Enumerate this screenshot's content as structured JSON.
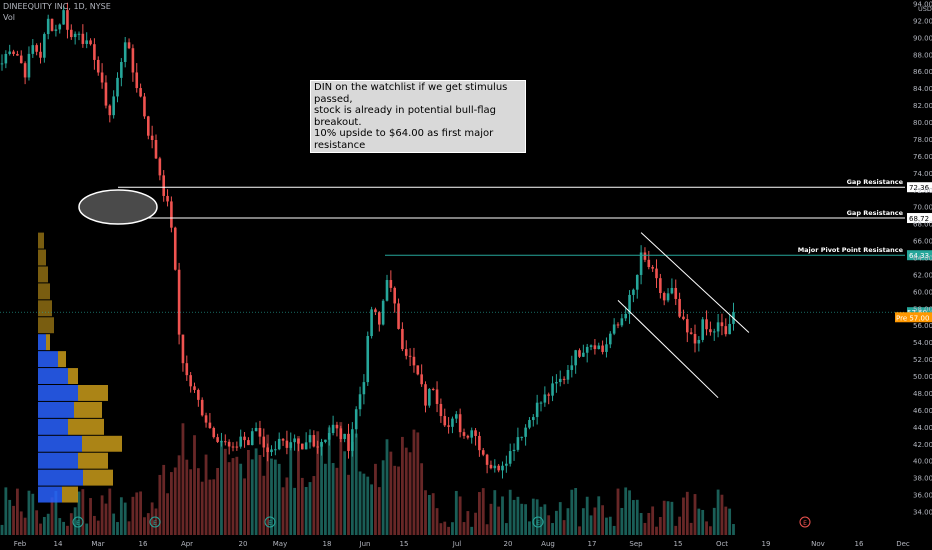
{
  "header": {
    "symbol": "DINEEQUITY INC, 1D, NYSE",
    "volume_label": "Vol"
  },
  "annotation": {
    "lines": [
      "DIN on the watchlist if we get stimulus passed,",
      "stock is already in potential bull-flag breakout.",
      "10% upside to $64.00 as first major resistance"
    ]
  },
  "chart_data": {
    "type": "candlestick",
    "currency": "USD",
    "y_axis": {
      "ylim": [
        34.0,
        94.0
      ],
      "ticks": [
        "94.00",
        "92.00",
        "90.00",
        "88.00",
        "86.00",
        "84.00",
        "82.00",
        "80.00",
        "78.00",
        "76.00",
        "74.00",
        "72.00",
        "70.00",
        "68.00",
        "66.00",
        "64.00",
        "62.00",
        "60.00",
        "58.00",
        "56.00",
        "54.00",
        "52.00",
        "50.00",
        "48.00",
        "46.00",
        "44.00",
        "42.00",
        "40.00",
        "38.00",
        "36.00",
        "34.00"
      ]
    },
    "x_axis": {
      "ticks": [
        "Feb",
        "14",
        "Mar",
        "16",
        "Apr",
        "20",
        "May",
        "18",
        "Jun",
        "15",
        "Jul",
        "20",
        "Aug",
        "17",
        "Sep",
        "15",
        "Oct",
        "19",
        "Nov",
        "16",
        "Dec"
      ]
    },
    "levels": [
      {
        "label": "Gap Resistance",
        "value": 72.36,
        "tag": "72.36"
      },
      {
        "label": "Gap Resistance",
        "value": 68.72,
        "tag": "68.72"
      },
      {
        "label": "Major Pivot Point Resistance",
        "value": 64.33,
        "tag": "64.33"
      }
    ],
    "price_tags": [
      {
        "prefix": "",
        "value": 57.6,
        "tag": "57.60",
        "color": "#26a69a"
      },
      {
        "prefix": "Pre",
        "value": 57.0,
        "tag": "57.00",
        "color": "#ff9800"
      }
    ],
    "colors": {
      "up": "#26a69a",
      "down": "#ef5350",
      "level": "#ffffff",
      "pivot": "#26a69a",
      "channel": "#ffffff",
      "vp_buy": "#2962ff",
      "vp_sell": "#c99b1a"
    },
    "series": [
      {
        "name": "price",
        "close_path": [
          [
            0,
            87
          ],
          [
            2,
            89
          ],
          [
            4,
            88
          ],
          [
            6,
            86
          ],
          [
            8,
            89
          ],
          [
            10,
            88
          ],
          [
            12,
            92
          ],
          [
            14,
            91
          ],
          [
            16,
            93
          ],
          [
            18,
            90
          ],
          [
            20,
            91
          ],
          [
            22,
            89
          ],
          [
            24,
            88
          ],
          [
            26,
            84
          ],
          [
            28,
            81
          ],
          [
            30,
            85
          ],
          [
            32,
            90
          ],
          [
            34,
            86
          ],
          [
            36,
            83
          ],
          [
            38,
            79
          ],
          [
            40,
            76
          ],
          [
            42,
            72
          ],
          [
            44,
            68
          ],
          [
            45,
            62
          ],
          [
            46,
            55
          ],
          [
            47,
            52
          ],
          [
            48,
            50
          ],
          [
            50,
            48
          ],
          [
            52,
            46
          ],
          [
            54,
            44
          ],
          [
            56,
            43
          ],
          [
            58,
            42
          ],
          [
            60,
            41
          ],
          [
            62,
            43
          ],
          [
            64,
            42
          ],
          [
            66,
            44
          ],
          [
            68,
            42
          ],
          [
            70,
            41
          ],
          [
            72,
            43
          ],
          [
            74,
            41
          ],
          [
            76,
            42
          ],
          [
            78,
            41
          ],
          [
            80,
            43
          ],
          [
            82,
            42
          ],
          [
            84,
            43
          ],
          [
            86,
            44
          ],
          [
            88,
            43
          ],
          [
            90,
            42
          ],
          [
            92,
            46
          ],
          [
            94,
            50
          ],
          [
            96,
            58
          ],
          [
            98,
            56
          ],
          [
            100,
            62
          ],
          [
            102,
            58
          ],
          [
            104,
            54
          ],
          [
            106,
            52
          ],
          [
            108,
            50
          ],
          [
            110,
            47
          ],
          [
            112,
            49
          ],
          [
            114,
            46
          ],
          [
            116,
            44
          ],
          [
            118,
            45
          ],
          [
            120,
            43
          ],
          [
            122,
            44
          ],
          [
            124,
            42
          ],
          [
            126,
            40
          ],
          [
            128,
            39
          ],
          [
            130,
            40
          ],
          [
            132,
            41
          ],
          [
            134,
            43
          ],
          [
            136,
            44
          ],
          [
            138,
            46
          ],
          [
            140,
            47
          ],
          [
            142,
            48
          ],
          [
            144,
            49
          ],
          [
            146,
            50
          ],
          [
            148,
            52
          ],
          [
            150,
            53
          ],
          [
            152,
            54
          ],
          [
            154,
            54
          ],
          [
            156,
            53
          ],
          [
            158,
            55
          ],
          [
            160,
            56
          ],
          [
            162,
            58
          ],
          [
            164,
            60
          ],
          [
            166,
            64
          ],
          [
            168,
            63
          ],
          [
            170,
            61
          ],
          [
            172,
            59
          ],
          [
            174,
            60
          ],
          [
            176,
            57
          ],
          [
            178,
            55
          ],
          [
            180,
            54
          ],
          [
            182,
            56
          ],
          [
            184,
            55
          ],
          [
            186,
            56
          ],
          [
            188,
            55
          ],
          [
            190,
            57.6
          ]
        ]
      }
    ]
  }
}
